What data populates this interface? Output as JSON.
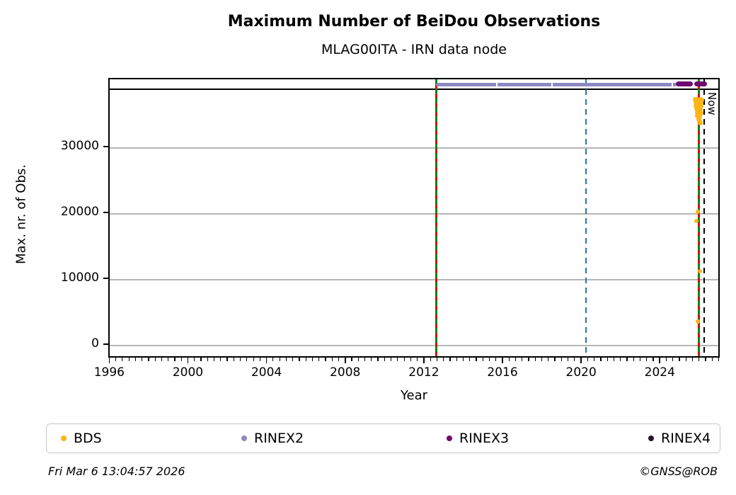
{
  "header": {
    "title": "Maximum Number of BeiDou Observations",
    "subtitle": "MLAG00ITA - IRN data node"
  },
  "footer": {
    "timestamp": "Fri Mar  6 13:04:57 2026",
    "credit": "©GNSS@ROB"
  },
  "legend": {
    "entries": [
      {
        "label": "BDS",
        "color": "#fdb515",
        "icon": "bds-marker-icon"
      },
      {
        "label": "RINEX2",
        "color": "#8e88c2",
        "icon": "rinex2-marker-icon"
      },
      {
        "label": "RINEX3",
        "color": "#6e0a6e",
        "icon": "rinex3-marker-icon"
      },
      {
        "label": "RINEX4",
        "color": "#2c0e30",
        "icon": "rinex4-marker-icon"
      }
    ]
  },
  "chart_data": {
    "type": "scatter",
    "title": "Maximum Number of BeiDou Observations",
    "subtitle": "MLAG00ITA - IRN data node",
    "xlabel": "Year",
    "ylabel": "Max. nr. of Obs.",
    "xlim": [
      1995.95,
      2027.05
    ],
    "ylim": [
      -2050,
      40430
    ],
    "xticks": [
      1996,
      2000,
      2004,
      2008,
      2012,
      2016,
      2020,
      2024
    ],
    "yticks": [
      0,
      10000,
      20000,
      30000
    ],
    "minor_xtick_step_years": 0.33333,
    "grid": "horizontal-only",
    "grid_color": "#b5b5b5",
    "max_obs_line": {
      "y": 38900,
      "color": "#000000"
    },
    "series": [
      {
        "name": "BDS",
        "color": "#fdb515",
        "points": [
          [
            2025.74,
            37350
          ],
          [
            2025.82,
            37320
          ],
          [
            2025.9,
            37280
          ],
          [
            2025.98,
            37330
          ],
          [
            2026.05,
            37250
          ],
          [
            2025.76,
            36950
          ],
          [
            2025.85,
            36850
          ],
          [
            2025.94,
            36900
          ],
          [
            2026.02,
            36820
          ],
          [
            2025.78,
            36420
          ],
          [
            2025.88,
            36350
          ],
          [
            2025.97,
            36430
          ],
          [
            2026.04,
            36380
          ],
          [
            2025.8,
            35920
          ],
          [
            2025.9,
            35840
          ],
          [
            2026.0,
            35900
          ],
          [
            2025.83,
            35380
          ],
          [
            2025.93,
            35300
          ],
          [
            2026.01,
            35350
          ],
          [
            2025.86,
            34880
          ],
          [
            2025.95,
            34780
          ],
          [
            2025.9,
            34380
          ],
          [
            2025.96,
            34050
          ],
          [
            2025.99,
            33820
          ],
          [
            2025.86,
            20300
          ],
          [
            2025.79,
            18900
          ],
          [
            2025.97,
            11300
          ],
          [
            2025.88,
            3700
          ]
        ]
      },
      {
        "name": "RINEX2",
        "color": "#8e88c2",
        "segments": [
          {
            "x0": 2012.55,
            "x1": 2024.8,
            "y": 39650
          }
        ],
        "gaps": [
          2015.64,
          2018.45,
          2024.56
        ]
      },
      {
        "name": "RINEX3",
        "color": "#6e0a6e",
        "segments": [
          {
            "x0": 2024.74,
            "x1": 2025.6,
            "y": 39700
          },
          {
            "x0": 2025.67,
            "x1": 2026.32,
            "y": 39700
          }
        ],
        "gaps": []
      },
      {
        "name": "RINEX4",
        "color": "#2c0e30",
        "points": []
      }
    ],
    "event_lines": [
      {
        "x": 2012.55,
        "style": "green-red-dashed",
        "colors": [
          "#128012",
          "#dd0000"
        ]
      },
      {
        "x": 2020.17,
        "style": "dashed",
        "color": "#1f77b4"
      },
      {
        "x": 2025.9,
        "style": "green-red-dashed",
        "colors": [
          "#128012",
          "#dd0000"
        ]
      },
      {
        "x": 2026.18,
        "style": "dashed",
        "color": "#000000",
        "label": "Now"
      }
    ]
  }
}
